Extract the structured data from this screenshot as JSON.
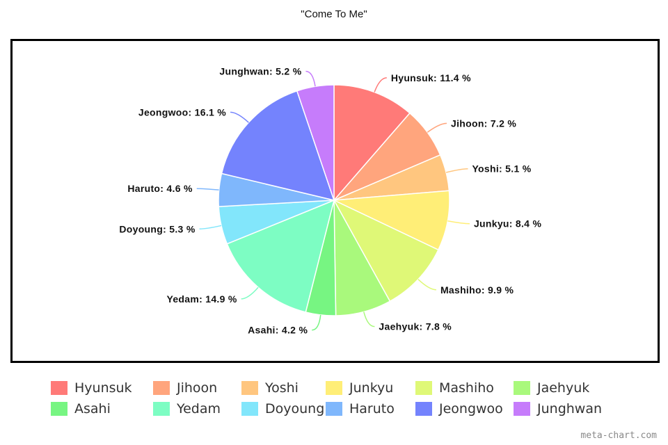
{
  "chart_data": {
    "type": "pie",
    "title": "\"Come To Me\"",
    "slices": [
      {
        "label": "Hyunsuk",
        "value": 11.4,
        "color": "#ff7a78"
      },
      {
        "label": "Jihoon",
        "value": 7.2,
        "color": "#ffa57d"
      },
      {
        "label": "Yoshi",
        "value": 5.1,
        "color": "#ffc67f"
      },
      {
        "label": "Junkyu",
        "value": 8.4,
        "color": "#ffee77"
      },
      {
        "label": "Mashiho",
        "value": 9.9,
        "color": "#dff877"
      },
      {
        "label": "Jaehyuk",
        "value": 7.8,
        "color": "#a9f97c"
      },
      {
        "label": "Asahi",
        "value": 4.2,
        "color": "#77f582"
      },
      {
        "label": "Yedam",
        "value": 14.9,
        "color": "#7dfdc3"
      },
      {
        "label": "Doyoung",
        "value": 5.3,
        "color": "#82e6fb"
      },
      {
        "label": "Haruto",
        "value": 4.6,
        "color": "#7fb7fc"
      },
      {
        "label": "Jeongwoo",
        "value": 16.1,
        "color": "#7483fd"
      },
      {
        "label": "Junghwan",
        "value": 5.2,
        "color": "#c67cfb"
      }
    ],
    "label_unit": "%",
    "legend": "bottom"
  },
  "watermark": "meta-chart.com"
}
